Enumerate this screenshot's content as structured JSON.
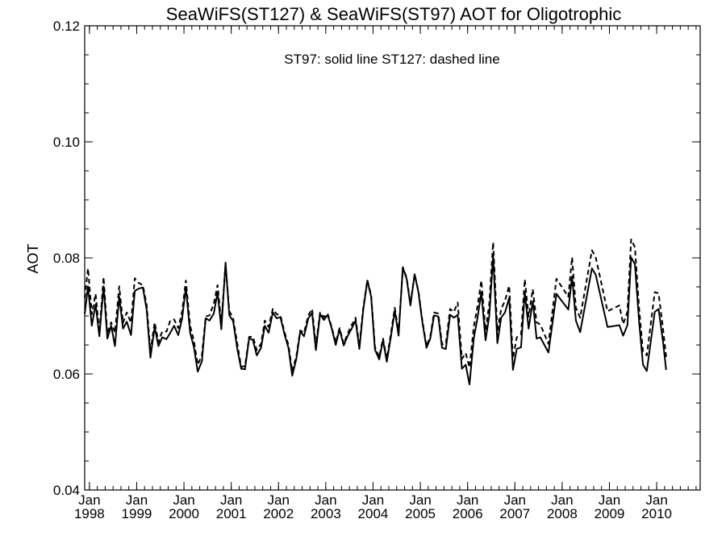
{
  "chart_data": {
    "type": "line",
    "title": "SeaWiFS(ST127) & SeaWiFS(ST97)  AOT for Oligotrophic",
    "annotation": "ST97: solid line   ST127: dashed line",
    "xlabel": "",
    "ylabel": "AOT",
    "ylim": [
      0.04,
      0.12
    ],
    "xlim": [
      1997.9,
      2010.92
    ],
    "y_ticks": [
      "0.04",
      "0.06",
      "0.08",
      "0.10",
      "0.12"
    ],
    "x_ticks": [
      {
        "month": "Jan",
        "year": "1998",
        "x": 1998.0
      },
      {
        "month": "Jan",
        "year": "1999",
        "x": 1999.0
      },
      {
        "month": "Jan",
        "year": "2000",
        "x": 2000.0
      },
      {
        "month": "Jan",
        "year": "2001",
        "x": 2001.0
      },
      {
        "month": "Jan",
        "year": "2002",
        "x": 2002.0
      },
      {
        "month": "Jan",
        "year": "2003",
        "x": 2003.0
      },
      {
        "month": "Jan",
        "year": "2004",
        "x": 2004.0
      },
      {
        "month": "Jan",
        "year": "2005",
        "x": 2005.0
      },
      {
        "month": "Jan",
        "year": "2006",
        "x": 2006.0
      },
      {
        "month": "Jan",
        "year": "2007",
        "x": 2007.0
      },
      {
        "month": "Jan",
        "year": "2008",
        "x": 2008.0
      },
      {
        "month": "Jan",
        "year": "2009",
        "x": 2009.0
      },
      {
        "month": "Jan",
        "year": "2010",
        "x": 2010.0
      }
    ],
    "series": [
      {
        "name": "ST97",
        "style": "solid",
        "points": [
          [
            1997.9,
            0.0703
          ],
          [
            1997.97,
            0.0751
          ],
          [
            1998.05,
            0.0683
          ],
          [
            1998.13,
            0.072
          ],
          [
            1998.21,
            0.0665
          ],
          [
            1998.3,
            0.0751
          ],
          [
            1998.38,
            0.0661
          ],
          [
            1998.46,
            0.0683
          ],
          [
            1998.54,
            0.0648
          ],
          [
            1998.63,
            0.0733
          ],
          [
            1998.71,
            0.0678
          ],
          [
            1998.79,
            0.069
          ],
          [
            1998.88,
            0.0667
          ],
          [
            1998.96,
            0.0743
          ],
          [
            1999.04,
            0.0747
          ],
          [
            1999.13,
            0.0749
          ],
          [
            1999.21,
            0.0711
          ],
          [
            1999.29,
            0.0628
          ],
          [
            1999.38,
            0.0681
          ],
          [
            1999.46,
            0.0648
          ],
          [
            1999.54,
            0.0663
          ],
          [
            1999.63,
            0.066
          ],
          [
            1999.71,
            0.0671
          ],
          [
            1999.79,
            0.0683
          ],
          [
            1999.88,
            0.0667
          ],
          [
            1999.96,
            0.0695
          ],
          [
            2000.04,
            0.0749
          ],
          [
            2000.13,
            0.0671
          ],
          [
            2000.21,
            0.0646
          ],
          [
            2000.29,
            0.0604
          ],
          [
            2000.38,
            0.0622
          ],
          [
            2000.46,
            0.0696
          ],
          [
            2000.54,
            0.0692
          ],
          [
            2000.63,
            0.0704
          ],
          [
            2000.71,
            0.0741
          ],
          [
            2000.79,
            0.0677
          ],
          [
            2000.88,
            0.0792
          ],
          [
            2000.96,
            0.0701
          ],
          [
            2001.04,
            0.0691
          ],
          [
            2001.13,
            0.0642
          ],
          [
            2001.21,
            0.0609
          ],
          [
            2001.29,
            0.0608
          ],
          [
            2001.38,
            0.0662
          ],
          [
            2001.46,
            0.0658
          ],
          [
            2001.54,
            0.0632
          ],
          [
            2001.63,
            0.0645
          ],
          [
            2001.71,
            0.0683
          ],
          [
            2001.79,
            0.0671
          ],
          [
            2001.88,
            0.0706
          ],
          [
            2001.96,
            0.0696
          ],
          [
            2002.04,
            0.0698
          ],
          [
            2002.13,
            0.0667
          ],
          [
            2002.21,
            0.0645
          ],
          [
            2002.29,
            0.0597
          ],
          [
            2002.38,
            0.0627
          ],
          [
            2002.46,
            0.0673
          ],
          [
            2002.54,
            0.0665
          ],
          [
            2002.63,
            0.0696
          ],
          [
            2002.71,
            0.0705
          ],
          [
            2002.79,
            0.0641
          ],
          [
            2002.88,
            0.0703
          ],
          [
            2002.96,
            0.0693
          ],
          [
            2003.04,
            0.0702
          ],
          [
            2003.13,
            0.0677
          ],
          [
            2003.21,
            0.065
          ],
          [
            2003.29,
            0.0677
          ],
          [
            2003.38,
            0.0649
          ],
          [
            2003.46,
            0.0665
          ],
          [
            2003.54,
            0.0677
          ],
          [
            2003.63,
            0.0692
          ],
          [
            2003.71,
            0.0643
          ],
          [
            2003.79,
            0.0709
          ],
          [
            2003.88,
            0.0761
          ],
          [
            2003.96,
            0.0733
          ],
          [
            2004.04,
            0.0642
          ],
          [
            2004.13,
            0.0625
          ],
          [
            2004.21,
            0.0658
          ],
          [
            2004.29,
            0.0621
          ],
          [
            2004.38,
            0.0665
          ],
          [
            2004.46,
            0.0709
          ],
          [
            2004.54,
            0.0666
          ],
          [
            2004.63,
            0.0783
          ],
          [
            2004.71,
            0.0764
          ],
          [
            2004.79,
            0.0718
          ],
          [
            2004.88,
            0.0772
          ],
          [
            2004.96,
            0.0741
          ],
          [
            2005.04,
            0.0691
          ],
          [
            2005.13,
            0.0645
          ],
          [
            2005.21,
            0.0661
          ],
          [
            2005.29,
            0.0701
          ],
          [
            2005.38,
            0.0699
          ],
          [
            2005.46,
            0.0645
          ],
          [
            2005.54,
            0.0643
          ],
          [
            2005.63,
            0.0702
          ],
          [
            2005.71,
            0.0697
          ],
          [
            2005.79,
            0.0702
          ],
          [
            2005.88,
            0.0609
          ],
          [
            2005.96,
            0.0616
          ],
          [
            2006.04,
            0.0582
          ],
          [
            2006.13,
            0.0661
          ],
          [
            2006.21,
            0.0697
          ],
          [
            2006.29,
            0.0741
          ],
          [
            2006.38,
            0.0658
          ],
          [
            2006.46,
            0.0701
          ],
          [
            2006.54,
            0.0803
          ],
          [
            2006.63,
            0.0653
          ],
          [
            2006.71,
            0.0697
          ],
          [
            2006.79,
            0.0706
          ],
          [
            2006.88,
            0.0731
          ],
          [
            2006.96,
            0.0607
          ],
          [
            2007.04,
            0.0643
          ],
          [
            2007.13,
            0.0646
          ],
          [
            2007.21,
            0.0741
          ],
          [
            2007.29,
            0.0678
          ],
          [
            2007.38,
            0.0725
          ],
          [
            2007.46,
            0.0661
          ],
          [
            2007.54,
            0.0663
          ],
          [
            2007.71,
            0.0637
          ],
          [
            2007.88,
            0.0738
          ],
          [
            2008.13,
            0.0711
          ],
          [
            2008.21,
            0.0768
          ],
          [
            2008.29,
            0.0692
          ],
          [
            2008.38,
            0.0672
          ],
          [
            2008.63,
            0.0782
          ],
          [
            2008.71,
            0.0771
          ],
          [
            2008.96,
            0.0681
          ],
          [
            2009.21,
            0.0684
          ],
          [
            2009.29,
            0.0666
          ],
          [
            2009.38,
            0.0684
          ],
          [
            2009.46,
            0.0801
          ],
          [
            2009.54,
            0.0789
          ],
          [
            2009.63,
            0.0688
          ],
          [
            2009.71,
            0.0616
          ],
          [
            2009.79,
            0.0605
          ],
          [
            2009.96,
            0.0707
          ],
          [
            2010.04,
            0.0712
          ],
          [
            2010.13,
            0.0658
          ],
          [
            2010.2,
            0.0607
          ]
        ]
      },
      {
        "name": "ST127",
        "style": "dashed",
        "points": [
          [
            1997.9,
            0.0731
          ],
          [
            1997.97,
            0.0782
          ],
          [
            1998.05,
            0.0703
          ],
          [
            1998.13,
            0.0738
          ],
          [
            1998.21,
            0.0671
          ],
          [
            1998.3,
            0.0767
          ],
          [
            1998.38,
            0.0669
          ],
          [
            1998.46,
            0.0689
          ],
          [
            1998.54,
            0.0671
          ],
          [
            1998.63,
            0.0751
          ],
          [
            1998.71,
            0.0688
          ],
          [
            1998.79,
            0.0706
          ],
          [
            1998.88,
            0.0688
          ],
          [
            1998.96,
            0.0765
          ],
          [
            1999.04,
            0.0757
          ],
          [
            1999.13,
            0.0753
          ],
          [
            1999.21,
            0.0719
          ],
          [
            1999.29,
            0.0638
          ],
          [
            1999.38,
            0.0689
          ],
          [
            1999.46,
            0.0655
          ],
          [
            1999.54,
            0.0673
          ],
          [
            1999.63,
            0.0673
          ],
          [
            1999.71,
            0.0692
          ],
          [
            1999.79,
            0.0694
          ],
          [
            1999.88,
            0.0679
          ],
          [
            1999.96,
            0.0707
          ],
          [
            2000.04,
            0.0761
          ],
          [
            2000.13,
            0.0683
          ],
          [
            2000.21,
            0.0657
          ],
          [
            2000.29,
            0.0616
          ],
          [
            2000.38,
            0.0632
          ],
          [
            2000.46,
            0.0699
          ],
          [
            2000.54,
            0.0701
          ],
          [
            2000.63,
            0.0721
          ],
          [
            2000.71,
            0.0753
          ],
          [
            2000.79,
            0.0688
          ],
          [
            2000.88,
            0.0788
          ],
          [
            2000.96,
            0.0708
          ],
          [
            2001.04,
            0.0696
          ],
          [
            2001.13,
            0.0651
          ],
          [
            2001.21,
            0.0612
          ],
          [
            2001.29,
            0.0614
          ],
          [
            2001.38,
            0.0664
          ],
          [
            2001.46,
            0.0664
          ],
          [
            2001.54,
            0.0641
          ],
          [
            2001.63,
            0.0652
          ],
          [
            2001.71,
            0.0692
          ],
          [
            2001.79,
            0.0681
          ],
          [
            2001.88,
            0.0712
          ],
          [
            2001.96,
            0.0703
          ],
          [
            2002.04,
            0.0701
          ],
          [
            2002.13,
            0.0671
          ],
          [
            2002.21,
            0.065
          ],
          [
            2002.29,
            0.0604
          ],
          [
            2002.38,
            0.0632
          ],
          [
            2002.46,
            0.0675
          ],
          [
            2002.54,
            0.0671
          ],
          [
            2002.63,
            0.0701
          ],
          [
            2002.71,
            0.0712
          ],
          [
            2002.79,
            0.0649
          ],
          [
            2002.88,
            0.0706
          ],
          [
            2002.96,
            0.0698
          ],
          [
            2003.04,
            0.0704
          ],
          [
            2003.13,
            0.0679
          ],
          [
            2003.21,
            0.0654
          ],
          [
            2003.29,
            0.0679
          ],
          [
            2003.38,
            0.0652
          ],
          [
            2003.46,
            0.0669
          ],
          [
            2003.54,
            0.0683
          ],
          [
            2003.63,
            0.0697
          ],
          [
            2003.71,
            0.0648
          ],
          [
            2003.79,
            0.0713
          ],
          [
            2003.88,
            0.0762
          ],
          [
            2003.96,
            0.0736
          ],
          [
            2004.04,
            0.0647
          ],
          [
            2004.13,
            0.0629
          ],
          [
            2004.21,
            0.0661
          ],
          [
            2004.29,
            0.0626
          ],
          [
            2004.38,
            0.0671
          ],
          [
            2004.46,
            0.0714
          ],
          [
            2004.54,
            0.0671
          ],
          [
            2004.63,
            0.0784
          ],
          [
            2004.71,
            0.0766
          ],
          [
            2004.79,
            0.0721
          ],
          [
            2004.88,
            0.0772
          ],
          [
            2004.96,
            0.0743
          ],
          [
            2005.04,
            0.0694
          ],
          [
            2005.13,
            0.0648
          ],
          [
            2005.21,
            0.0664
          ],
          [
            2005.29,
            0.0706
          ],
          [
            2005.38,
            0.0704
          ],
          [
            2005.46,
            0.0651
          ],
          [
            2005.54,
            0.0652
          ],
          [
            2005.63,
            0.0712
          ],
          [
            2005.71,
            0.0707
          ],
          [
            2005.79,
            0.0723
          ],
          [
            2005.88,
            0.0626
          ],
          [
            2005.96,
            0.0636
          ],
          [
            2006.04,
            0.0611
          ],
          [
            2006.13,
            0.0681
          ],
          [
            2006.21,
            0.0717
          ],
          [
            2006.29,
            0.0761
          ],
          [
            2006.38,
            0.0675
          ],
          [
            2006.46,
            0.0721
          ],
          [
            2006.54,
            0.0827
          ],
          [
            2006.63,
            0.0674
          ],
          [
            2006.71,
            0.0712
          ],
          [
            2006.79,
            0.0726
          ],
          [
            2006.88,
            0.0752
          ],
          [
            2006.96,
            0.0627
          ],
          [
            2007.04,
            0.0663
          ],
          [
            2007.13,
            0.0668
          ],
          [
            2007.21,
            0.0763
          ],
          [
            2007.29,
            0.0699
          ],
          [
            2007.38,
            0.0746
          ],
          [
            2007.46,
            0.0689
          ],
          [
            2007.54,
            0.0685
          ],
          [
            2007.71,
            0.0652
          ],
          [
            2007.88,
            0.0764
          ],
          [
            2008.13,
            0.0733
          ],
          [
            2008.21,
            0.0801
          ],
          [
            2008.29,
            0.0714
          ],
          [
            2008.38,
            0.0697
          ],
          [
            2008.63,
            0.0813
          ],
          [
            2008.71,
            0.0801
          ],
          [
            2008.96,
            0.0708
          ],
          [
            2009.21,
            0.0718
          ],
          [
            2009.29,
            0.0686
          ],
          [
            2009.38,
            0.0707
          ],
          [
            2009.46,
            0.0832
          ],
          [
            2009.54,
            0.0818
          ],
          [
            2009.63,
            0.0711
          ],
          [
            2009.71,
            0.0639
          ],
          [
            2009.79,
            0.0632
          ],
          [
            2009.96,
            0.0741
          ],
          [
            2010.04,
            0.0739
          ],
          [
            2010.13,
            0.0681
          ],
          [
            2010.2,
            0.0629
          ]
        ]
      }
    ],
    "grid": false,
    "legend": "none"
  }
}
